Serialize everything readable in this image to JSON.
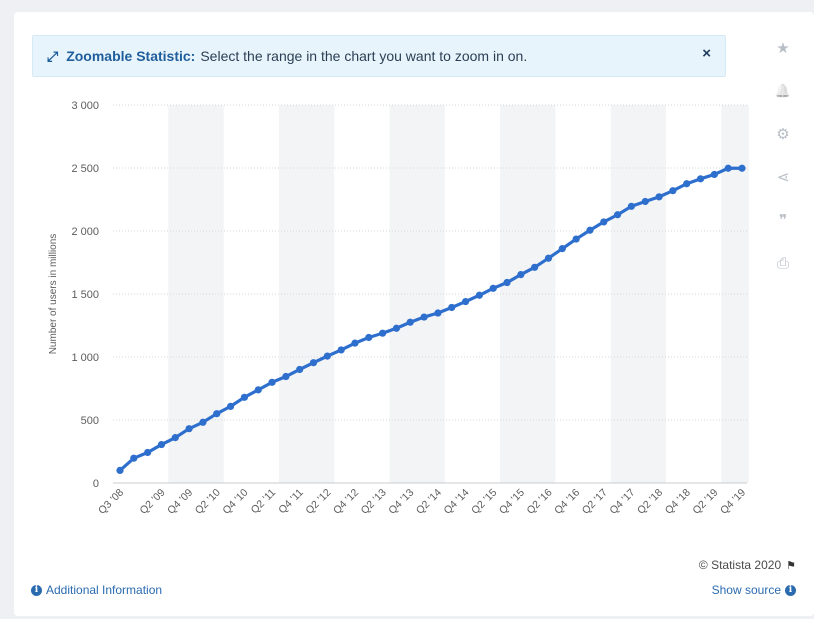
{
  "zoom_banner": {
    "title": "Zoomable Statistic:",
    "text": "Select the range in the chart you want to zoom in on.",
    "close": "×"
  },
  "sidebar": {
    "buttons": [
      {
        "name": "star-icon",
        "glyph": "★"
      },
      {
        "name": "bell-icon",
        "glyph": "🔔"
      },
      {
        "name": "gear-icon",
        "glyph": "⚙"
      },
      {
        "name": "share-icon",
        "glyph": "⋖"
      },
      {
        "name": "quote-icon",
        "glyph": "❞"
      },
      {
        "name": "print-icon",
        "glyph": "⎙"
      }
    ]
  },
  "footer": {
    "credit": "© Statista 2020",
    "additional_info": "Additional Information",
    "show_source": "Show source"
  },
  "chart_data": {
    "type": "line",
    "title": "",
    "xlabel": "",
    "ylabel": "Number of users in millions",
    "ylim": [
      0,
      3000
    ],
    "yticks": [
      0,
      500,
      1000,
      1500,
      2000,
      2500,
      3000
    ],
    "ytick_labels": [
      "0",
      "500",
      "1 000",
      "1 500",
      "2 000",
      "2 500",
      "3 000"
    ],
    "grid": true,
    "color": "#2e6fce",
    "x": [
      "Q3 '08",
      "Q4 '08",
      "Q1 '09",
      "Q2 '09",
      "Q3 '09",
      "Q4 '09",
      "Q1 '10",
      "Q2 '10",
      "Q3 '10",
      "Q4 '10",
      "Q1 '11",
      "Q2 '11",
      "Q3 '11",
      "Q4 '11",
      "Q1 '12",
      "Q2 '12",
      "Q3 '12",
      "Q4 '12",
      "Q1 '13",
      "Q2 '13",
      "Q3 '13",
      "Q4 '13",
      "Q1 '14",
      "Q2 '14",
      "Q3 '14",
      "Q4 '14",
      "Q1 '15",
      "Q2 '15",
      "Q3 '15",
      "Q4 '15",
      "Q1 '16",
      "Q2 '16",
      "Q3 '16",
      "Q4 '16",
      "Q1 '17",
      "Q2 '17",
      "Q3 '17",
      "Q4 '17",
      "Q1 '18",
      "Q2 '18",
      "Q3 '18",
      "Q4 '18",
      "Q1 '19",
      "Q2 '19",
      "Q3 '19",
      "Q4 '19"
    ],
    "xtick_labels": [
      "Q3 '08",
      "Q2 '09",
      "Q4 '09",
      "Q2 '10",
      "Q4 '10",
      "Q2 '11",
      "Q4 '11",
      "Q2 '12",
      "Q4 '12",
      "Q2 '13",
      "Q4 '13",
      "Q2 '14",
      "Q4 '14",
      "Q2 '15",
      "Q4 '15",
      "Q2 '16",
      "Q4 '16",
      "Q2 '17",
      "Q4 '17",
      "Q2 '18",
      "Q4 '18",
      "Q2 '19",
      "Q4 '19"
    ],
    "values": [
      100,
      197,
      242,
      305,
      360,
      431,
      482,
      550,
      608,
      680,
      739,
      799,
      845,
      901,
      955,
      1007,
      1056,
      1110,
      1155,
      1189,
      1228,
      1276,
      1317,
      1349,
      1393,
      1440,
      1490,
      1545,
      1591,
      1654,
      1712,
      1784,
      1860,
      1936,
      2006,
      2072,
      2129,
      2196,
      2234,
      2271,
      2320,
      2375,
      2414,
      2449,
      2498,
      2498
    ]
  }
}
